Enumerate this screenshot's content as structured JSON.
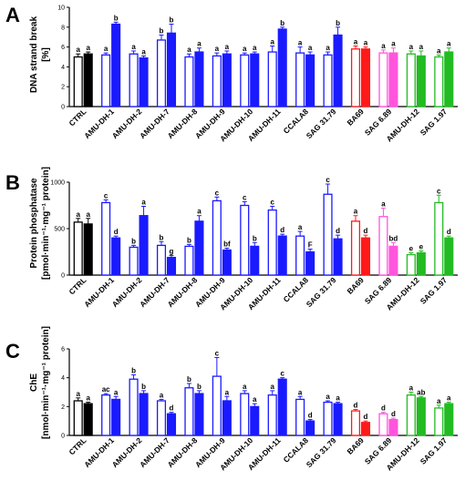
{
  "colors": {
    "black": "#000000",
    "blue": "#1a1aff",
    "red": "#ff1a1a",
    "magenta": "#ff55dd",
    "green": "#22bb22"
  },
  "categories": [
    "CTRL",
    "AMU-DH-1",
    "AMU-DH-2",
    "AMU-DH-7",
    "AMU-DH-8",
    "AMU-DH-9",
    "AMU-DH-10",
    "AMU-DH-11",
    "CCALA8",
    "SAG 31.79",
    "BA69",
    "SAG 6.89",
    "AMU-DH-12",
    "SAG 1.97"
  ],
  "group_colors": [
    "black",
    "blue",
    "blue",
    "blue",
    "blue",
    "blue",
    "blue",
    "blue",
    "blue",
    "blue",
    "red",
    "magenta",
    "green",
    "green"
  ],
  "chart_data": [
    {
      "type": "bar",
      "panel": "A",
      "ylabel_lines": [
        "DNA strand break",
        "[%]"
      ],
      "ylim": [
        0,
        10
      ],
      "yticks": [
        "0",
        "2",
        "4",
        "6",
        "8",
        "10"
      ],
      "categories": [
        "CTRL",
        "AMU-DH-1",
        "AMU-DH-2",
        "AMU-DH-7",
        "AMU-DH-8",
        "AMU-DH-9",
        "AMU-DH-10",
        "AMU-DH-11",
        "CCALA8",
        "SAG 31.79",
        "BA69",
        "SAG 6.89",
        "AMU-DH-12",
        "SAG 1.97"
      ],
      "series": [
        {
          "values": [
            5.0,
            5.2,
            5.3,
            6.7,
            5.0,
            5.1,
            5.2,
            5.5,
            5.4,
            5.2,
            5.8,
            5.4,
            5.3,
            5.0
          ],
          "errors": [
            0.3,
            0.2,
            0.3,
            0.5,
            0.3,
            0.3,
            0.2,
            0.6,
            0.6,
            0.3,
            0.3,
            0.3,
            0.3,
            0.2
          ],
          "labels": [
            "a",
            "a",
            "a",
            "b",
            "a",
            "a",
            "a",
            "a",
            "a",
            "a",
            "a",
            "a",
            "a",
            "a"
          ]
        },
        {
          "values": [
            5.3,
            8.3,
            4.9,
            7.4,
            5.5,
            5.3,
            5.3,
            7.8,
            5.2,
            7.2,
            5.8,
            5.4,
            5.1,
            5.5
          ],
          "errors": [
            0.2,
            0.2,
            0.2,
            0.9,
            0.4,
            0.3,
            0.2,
            0.2,
            0.3,
            0.8,
            0.2,
            0.5,
            0.5,
            0.4
          ],
          "labels": [
            "a",
            "b",
            "a",
            "b",
            "a",
            "a",
            "a",
            "b",
            "a",
            "b",
            "a",
            "a",
            "a",
            "a"
          ]
        }
      ]
    },
    {
      "type": "bar",
      "panel": "B",
      "ylabel_lines": [
        "Protein phosphatase",
        "[pmol·min⁻¹·mg⁻¹ protein]"
      ],
      "ylim": [
        0,
        1000
      ],
      "yticks": [
        "0",
        "500",
        "1000"
      ],
      "categories": [
        "CTRL",
        "AMU-DH-1",
        "AMU-DH-2",
        "AMU-DH-7",
        "AMU-DH-8",
        "AMU-DH-9",
        "AMU-DH-10",
        "AMU-DH-11",
        "CCALA8",
        "SAG 31.79",
        "BA69",
        "SAG 6.89",
        "AMU-DH-12",
        "SAG 1.97"
      ],
      "series": [
        {
          "values": [
            570,
            780,
            300,
            320,
            310,
            800,
            750,
            700,
            420,
            870,
            580,
            630,
            220,
            780
          ],
          "errors": [
            40,
            30,
            20,
            40,
            20,
            40,
            40,
            40,
            50,
            110,
            60,
            90,
            20,
            80
          ],
          "labels": [
            "a",
            "c",
            "b",
            "b",
            "b",
            "c",
            "c",
            "c",
            "a",
            "c",
            "a",
            "a",
            "e",
            "c"
          ]
        },
        {
          "values": [
            550,
            400,
            640,
            190,
            580,
            270,
            310,
            420,
            250,
            390,
            400,
            310,
            240,
            400
          ],
          "errors": [
            60,
            20,
            100,
            20,
            60,
            20,
            40,
            20,
            30,
            40,
            30,
            40,
            20,
            20
          ],
          "labels": [
            "a",
            "d",
            "a",
            "g",
            "a",
            "bf",
            "b",
            "d",
            "F",
            "d",
            "d",
            "bd",
            "e",
            "d"
          ]
        }
      ]
    },
    {
      "type": "bar",
      "panel": "C",
      "ylabel_lines": [
        "ChE",
        "[nmol·min⁻¹·mg⁻¹ protein]"
      ],
      "ylim": [
        0,
        6
      ],
      "yticks": [
        "0",
        "2",
        "4",
        "6"
      ],
      "categories": [
        "CTRL",
        "AMU-DH-1",
        "AMU-DH-2",
        "AMU-DH-7",
        "AMU-DH-8",
        "AMU-DH-9",
        "AMU-DH-10",
        "AMU-DH-11",
        "CCALA8",
        "SAG 31.79",
        "BA69",
        "SAG 6.89",
        "AMU-DH-12",
        "SAG 1.97"
      ],
      "series": [
        {
          "values": [
            2.4,
            2.8,
            3.9,
            2.4,
            3.3,
            4.1,
            2.9,
            2.8,
            2.5,
            2.3,
            1.7,
            1.5,
            2.8,
            1.9
          ],
          "errors": [
            0.2,
            0.1,
            0.3,
            0.1,
            0.3,
            1.3,
            0.2,
            0.3,
            0.2,
            0.1,
            0.1,
            0.1,
            0.2,
            0.2
          ],
          "labels": [
            "a",
            "ac",
            "b",
            "a",
            "b",
            "c",
            "a",
            "a",
            "a",
            "a",
            "d",
            "d",
            "a",
            "a"
          ]
        },
        {
          "values": [
            2.2,
            2.5,
            2.9,
            1.5,
            2.9,
            2.4,
            2.0,
            3.9,
            1.0,
            2.2,
            0.9,
            1.1,
            2.6,
            2.2
          ],
          "errors": [
            0.1,
            0.2,
            0.2,
            0.1,
            0.2,
            0.3,
            0.2,
            0.1,
            0.1,
            0.1,
            0.1,
            0.1,
            0.1,
            0.1
          ],
          "labels": [
            "a",
            "a",
            "b",
            "d",
            "b",
            "a",
            "a",
            "c",
            "d",
            "a",
            "d",
            "d",
            "ab",
            "a"
          ]
        }
      ]
    }
  ]
}
